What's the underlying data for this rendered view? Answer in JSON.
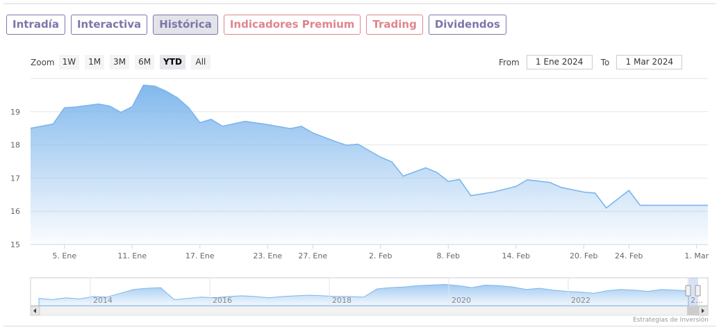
{
  "tabs": [
    {
      "label": "Intradía",
      "style": "normal"
    },
    {
      "label": "Interactiva",
      "style": "normal"
    },
    {
      "label": "Histórica",
      "style": "active"
    },
    {
      "label": "Indicadores Premium",
      "style": "red"
    },
    {
      "label": "Trading",
      "style": "red"
    },
    {
      "label": "Dividendos",
      "style": "normal"
    }
  ],
  "zoom": {
    "label": "Zoom",
    "buttons": [
      "1W",
      "1M",
      "3M",
      "6M",
      "YTD",
      "All"
    ],
    "selected": "YTD"
  },
  "range": {
    "from_label": "From",
    "from_value": "1 Ene 2024",
    "to_label": "To",
    "to_value": "1 Mar 2024"
  },
  "credits": "Estrategias de Inversión",
  "colors": {
    "line": "#7cb5ec",
    "tab_border": "#7b76a8",
    "tab_red": "#e0848e"
  },
  "chart_data": {
    "type": "area",
    "title": "",
    "xlabel": "",
    "ylabel": "",
    "ylim": [
      15,
      20
    ],
    "yticks": [
      15,
      16,
      17,
      18,
      19
    ],
    "x_ticks": [
      "5. Ene",
      "11. Ene",
      "17. Ene",
      "23. Ene",
      "27. Ene",
      "2. Feb",
      "8. Feb",
      "14. Feb",
      "20. Feb",
      "24. Feb",
      "1. Mar"
    ],
    "x_tick_dates": [
      "2024-01-05",
      "2024-01-11",
      "2024-01-17",
      "2024-01-23",
      "2024-01-27",
      "2024-02-02",
      "2024-02-08",
      "2024-02-14",
      "2024-02-20",
      "2024-02-24",
      "2024-03-01"
    ],
    "x_range": [
      "2024-01-02",
      "2024-03-02"
    ],
    "grid": true,
    "legend": "none",
    "series": [
      {
        "x": [
          "2024-01-02",
          "2024-01-04",
          "2024-01-05",
          "2024-01-06",
          "2024-01-08",
          "2024-01-09",
          "2024-01-10",
          "2024-01-11",
          "2024-01-12",
          "2024-01-13",
          "2024-01-14",
          "2024-01-15",
          "2024-01-16",
          "2024-01-17",
          "2024-01-18",
          "2024-01-19",
          "2024-01-21",
          "2024-01-22",
          "2024-01-23",
          "2024-01-25",
          "2024-01-26",
          "2024-01-27",
          "2024-01-29",
          "2024-01-30",
          "2024-01-31",
          "2024-02-02",
          "2024-02-03",
          "2024-02-04",
          "2024-02-06",
          "2024-02-07",
          "2024-02-08",
          "2024-02-09",
          "2024-02-10",
          "2024-02-12",
          "2024-02-14",
          "2024-02-15",
          "2024-02-17",
          "2024-02-18",
          "2024-02-20",
          "2024-02-21",
          "2024-02-22",
          "2024-02-24",
          "2024-02-25",
          "2024-02-27",
          "2024-02-28",
          "2024-02-29",
          "2024-03-01",
          "2024-03-02"
        ],
        "values": [
          18.5,
          18.63,
          19.12,
          19.14,
          19.23,
          19.17,
          18.98,
          19.15,
          19.8,
          19.77,
          19.62,
          19.42,
          19.12,
          18.67,
          18.77,
          18.56,
          18.71,
          18.66,
          18.61,
          18.49,
          18.56,
          18.36,
          18.1,
          17.99,
          18.02,
          17.63,
          17.49,
          17.06,
          17.31,
          17.17,
          16.9,
          16.96,
          16.47,
          16.58,
          16.75,
          16.95,
          16.87,
          16.72,
          16.58,
          16.55,
          16.1,
          16.63,
          16.18,
          16.18,
          16.18,
          16.18,
          16.18,
          16.18
        ]
      }
    ]
  },
  "navigator": {
    "year_labels": [
      "2014",
      "2016",
      "2018",
      "2020",
      "2022",
      "2…"
    ],
    "series_values": [
      16.2,
      16.0,
      16.3,
      16.1,
      16.5,
      16.4,
      17.0,
      17.6,
      17.8,
      17.9,
      16.0,
      16.2,
      16.4,
      16.3,
      16.5,
      16.6,
      16.5,
      16.3,
      16.5,
      16.6,
      16.7,
      16.6,
      16.5,
      16.5,
      16.4,
      17.7,
      17.9,
      18.0,
      18.2,
      18.3,
      18.4,
      18.2,
      17.9,
      18.3,
      18.2,
      18.0,
      17.6,
      17.8,
      17.5,
      17.3,
      17.2,
      17.0,
      17.4,
      17.6,
      17.5,
      17.3,
      17.6,
      17.5,
      17.4
    ]
  }
}
